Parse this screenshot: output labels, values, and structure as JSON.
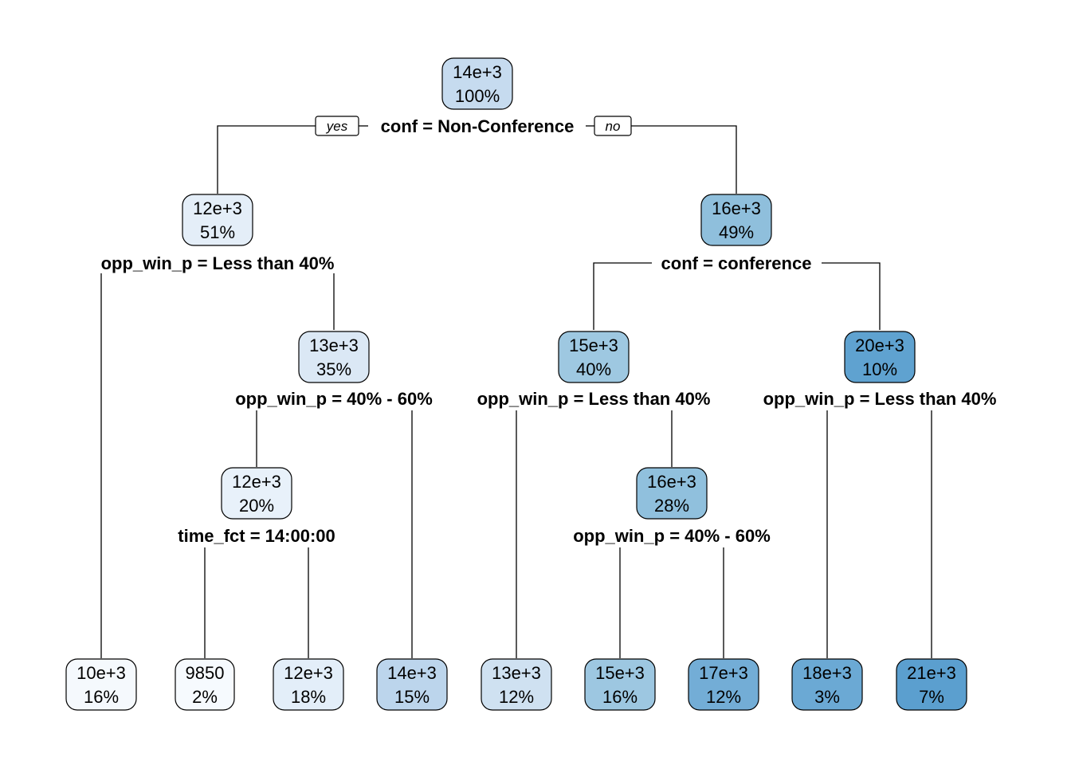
{
  "tree": {
    "branch_labels": {
      "yes": "yes",
      "no": "no"
    },
    "nodes": [
      {
        "id": "root",
        "value": "14e+3",
        "pct": "100%",
        "fill": "#c6dbef",
        "split": "conf = Non-Conference"
      },
      {
        "id": "n2",
        "value": "12e+3",
        "pct": "51%",
        "fill": "#e4eef8",
        "split": "opp_win_p = Less than 40%"
      },
      {
        "id": "n3",
        "value": "16e+3",
        "pct": "49%",
        "fill": "#8fbfdc",
        "split": "conf = conference"
      },
      {
        "id": "n5",
        "value": "13e+3",
        "pct": "35%",
        "fill": "#dbe8f5",
        "split": "opp_win_p = 40% - 60%"
      },
      {
        "id": "n6",
        "value": "15e+3",
        "pct": "40%",
        "fill": "#9ec8e1",
        "split": "opp_win_p = Less than 40%"
      },
      {
        "id": "n7",
        "value": "20e+3",
        "pct": "10%",
        "fill": "#5fa2d0",
        "split": "opp_win_p = Less than 40%"
      },
      {
        "id": "n10",
        "value": "12e+3",
        "pct": "20%",
        "fill": "#e8f1fa",
        "split": "time_fct = 14:00:00"
      },
      {
        "id": "n13",
        "value": "16e+3",
        "pct": "28%",
        "fill": "#90c0dd",
        "split": "opp_win_p = 40% - 60%"
      },
      {
        "id": "leaf1",
        "value": "10e+3",
        "pct": "16%",
        "fill": "#f5f9fd"
      },
      {
        "id": "leaf2",
        "value": "9850",
        "pct": "2%",
        "fill": "#f6fafe"
      },
      {
        "id": "leaf3",
        "value": "12e+3",
        "pct": "18%",
        "fill": "#e3eef9"
      },
      {
        "id": "leaf4",
        "value": "14e+3",
        "pct": "15%",
        "fill": "#bcd5ec"
      },
      {
        "id": "leaf5",
        "value": "13e+3",
        "pct": "12%",
        "fill": "#cfe1f1"
      },
      {
        "id": "leaf6",
        "value": "15e+3",
        "pct": "16%",
        "fill": "#9dc7e1"
      },
      {
        "id": "leaf7",
        "value": "17e+3",
        "pct": "12%",
        "fill": "#73add6"
      },
      {
        "id": "leaf8",
        "value": "18e+3",
        "pct": "3%",
        "fill": "#6ba9d4"
      },
      {
        "id": "leaf9",
        "value": "21e+3",
        "pct": "7%",
        "fill": "#5b9fcf"
      }
    ]
  }
}
